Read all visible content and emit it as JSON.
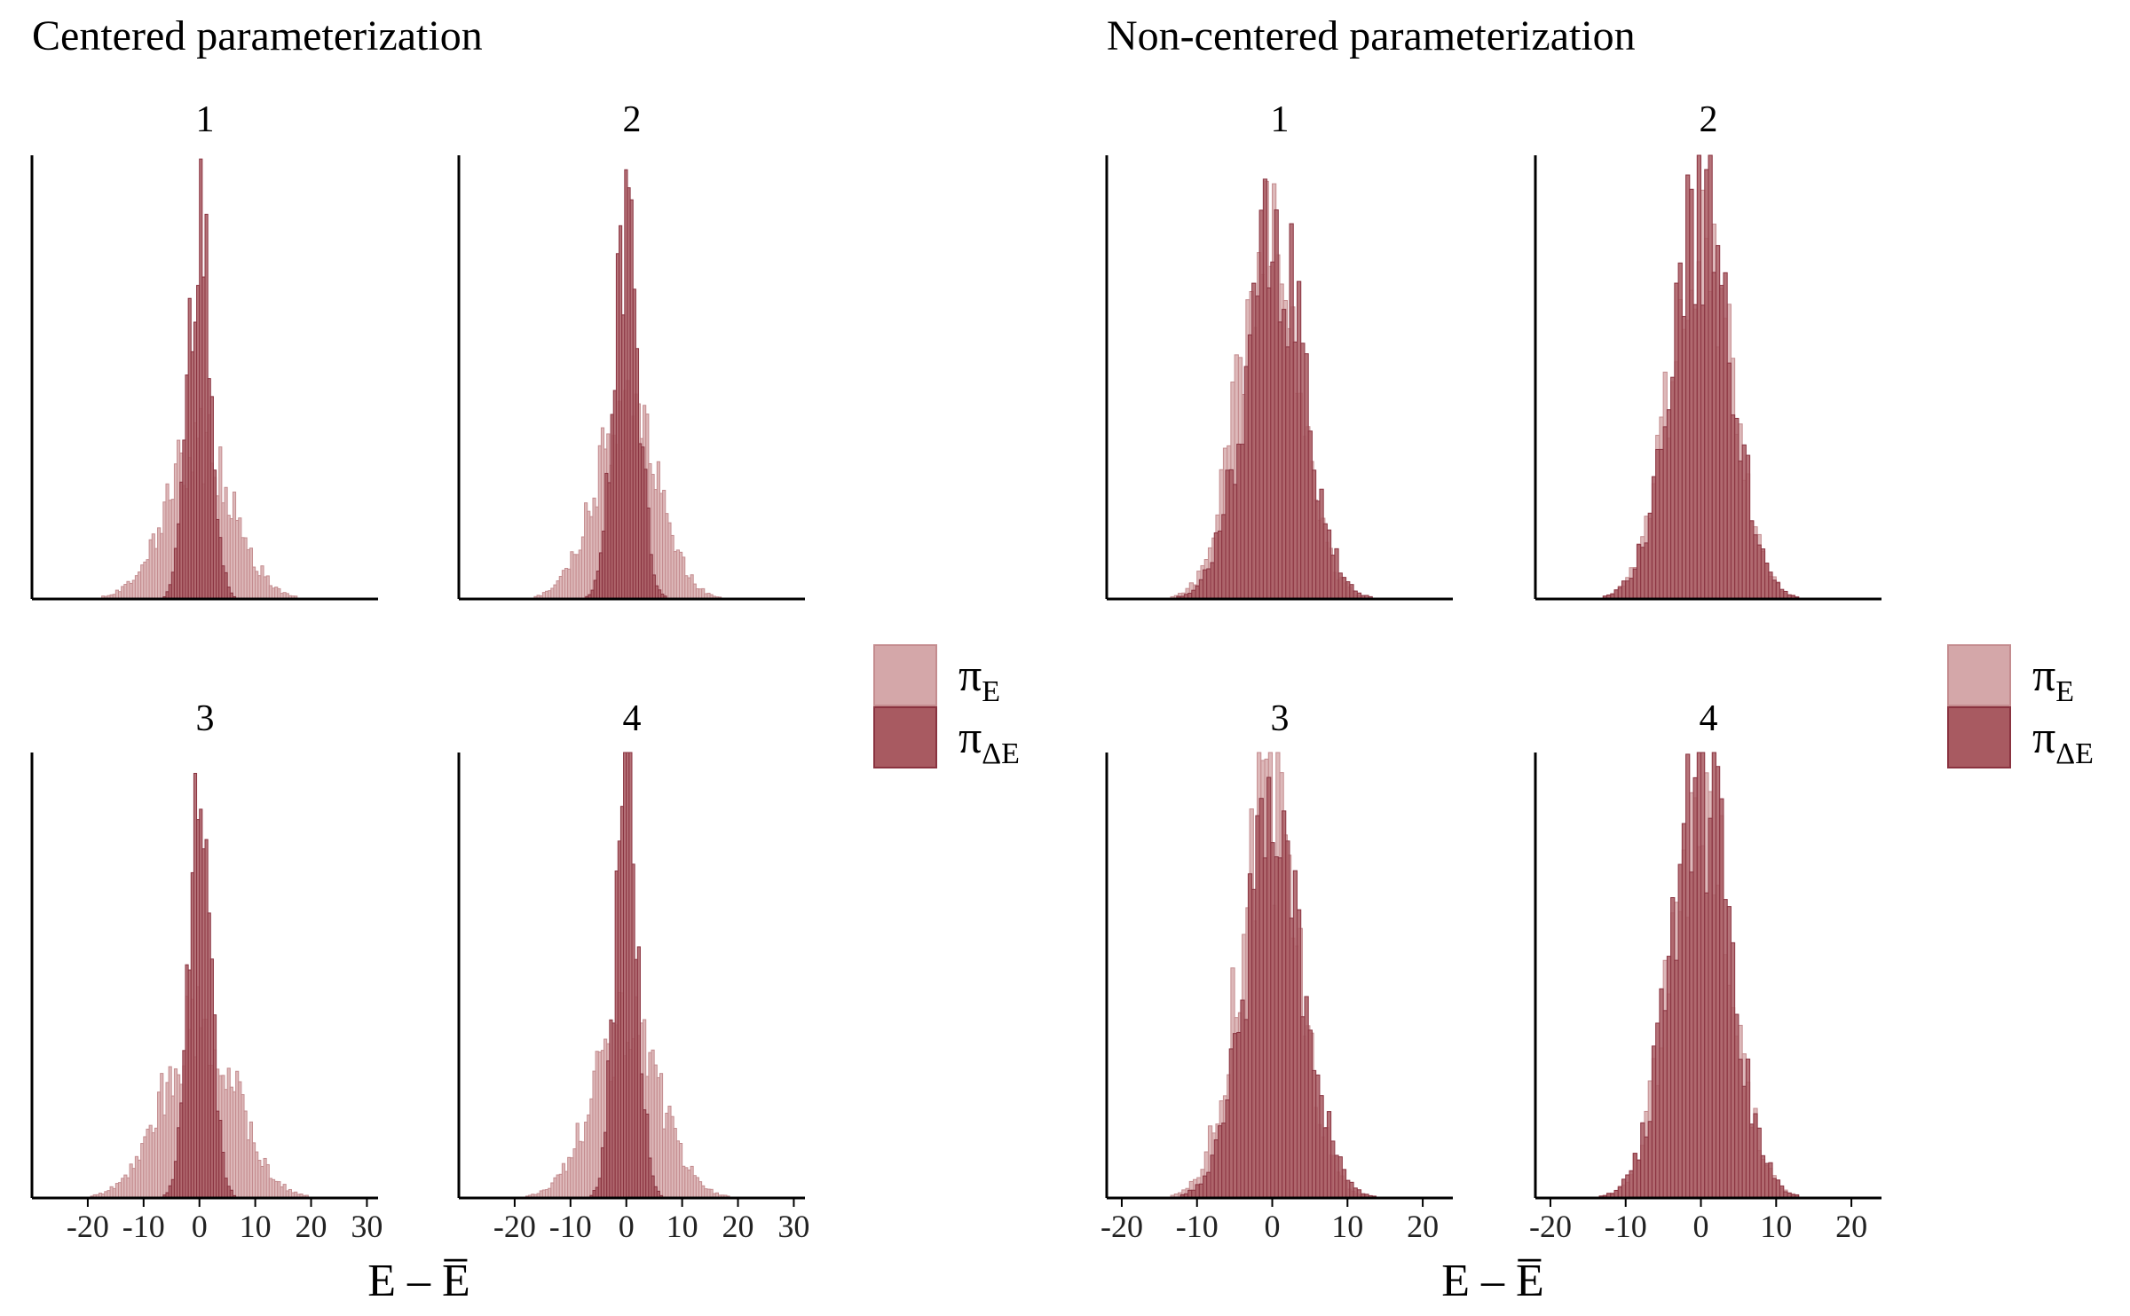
{
  "colors": {
    "pi_E_fill": "#d4a7a9",
    "pi_E_stroke": "#c48c8f",
    "pi_dE_fill": "#a85a61",
    "pi_dE_stroke": "#8a3340",
    "axis": "#000000"
  },
  "legend": {
    "items": [
      {
        "symbol": "π",
        "subscript": "E",
        "series": "pi_E"
      },
      {
        "symbol": "π",
        "subscript": "ΔE",
        "series": "pi_dE"
      }
    ]
  },
  "chart_data": [
    {
      "type": "histogram",
      "title": "Centered parameterization",
      "xlabel": "E – E̅",
      "xticks": [
        -20,
        -10,
        0,
        10,
        20,
        30
      ],
      "xtick_labels": [
        "-20",
        "-10",
        "0",
        "10",
        "20",
        "30"
      ],
      "xlim": [
        -30,
        32
      ],
      "panels": [
        {
          "label": "1",
          "series": [
            {
              "name": "pi_E",
              "center": 0,
              "sd": 6.0,
              "peak": 0.36
            },
            {
              "name": "pi_dE",
              "center": 0,
              "sd": 2.0,
              "peak": 0.9
            }
          ]
        },
        {
          "label": "2",
          "series": [
            {
              "name": "pi_E",
              "center": 0,
              "sd": 5.5,
              "peak": 0.44
            },
            {
              "name": "pi_dE",
              "center": 0,
              "sd": 2.2,
              "peak": 0.86
            }
          ]
        },
        {
          "label": "3",
          "series": [
            {
              "name": "pi_E",
              "center": 0,
              "sd": 6.5,
              "peak": 0.4
            },
            {
              "name": "pi_dE",
              "center": 0,
              "sd": 2.0,
              "peak": 0.95
            }
          ]
        },
        {
          "label": "4",
          "series": [
            {
              "name": "pi_E",
              "center": 0,
              "sd": 6.0,
              "peak": 0.4
            },
            {
              "name": "pi_dE",
              "center": 0,
              "sd": 2.0,
              "peak": 0.95
            }
          ]
        }
      ]
    },
    {
      "type": "histogram",
      "title": "Non-centered parameterization",
      "xlabel": "E – E̅",
      "xticks": [
        -20,
        -10,
        0,
        10,
        20
      ],
      "xtick_labels": [
        "-20",
        "-10",
        "0",
        "10",
        "20"
      ],
      "xlim": [
        -22,
        24
      ],
      "panels": [
        {
          "label": "1",
          "series": [
            {
              "name": "pi_E",
              "center": -0.5,
              "sd": 4.0,
              "peak": 0.85
            },
            {
              "name": "pi_dE",
              "center": 0.3,
              "sd": 4.0,
              "peak": 0.82
            }
          ]
        },
        {
          "label": "2",
          "series": [
            {
              "name": "pi_E",
              "center": 0,
              "sd": 4.0,
              "peak": 0.88
            },
            {
              "name": "pi_dE",
              "center": 0,
              "sd": 4.0,
              "peak": 0.9
            }
          ]
        },
        {
          "label": "3",
          "series": [
            {
              "name": "pi_E",
              "center": -0.5,
              "sd": 4.0,
              "peak": 0.88
            },
            {
              "name": "pi_dE",
              "center": 0.3,
              "sd": 4.0,
              "peak": 0.85
            }
          ]
        },
        {
          "label": "4",
          "series": [
            {
              "name": "pi_E",
              "center": 0,
              "sd": 4.0,
              "peak": 0.9
            },
            {
              "name": "pi_dE",
              "center": 0,
              "sd": 4.0,
              "peak": 0.95
            }
          ]
        }
      ]
    }
  ]
}
